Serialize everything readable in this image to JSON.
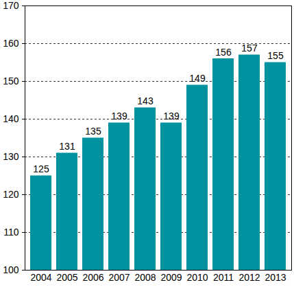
{
  "chart_data": {
    "type": "bar",
    "categories": [
      "2004",
      "2005",
      "2006",
      "2007",
      "2008",
      "2009",
      "2010",
      "2011",
      "2012",
      "2013"
    ],
    "values": [
      125,
      131,
      135,
      139,
      143,
      139,
      149,
      156,
      157,
      155
    ],
    "color": "#00929f",
    "ylim": [
      100,
      170
    ],
    "yticks": [
      100,
      110,
      120,
      130,
      140,
      150,
      160,
      170
    ],
    "grid": true,
    "data_labels": true
  }
}
